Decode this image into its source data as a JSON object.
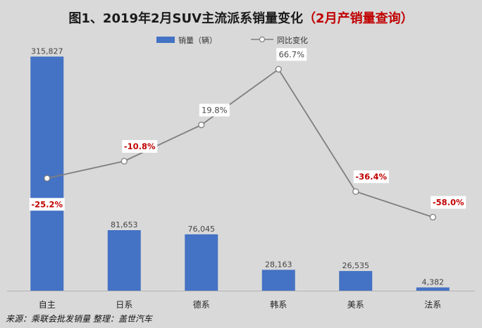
{
  "chart_data": {
    "type": "bar",
    "title_main": "图1、2019年2月SUV主流派系销量变化",
    "title_paren": "（2月产销量查询）",
    "categories": [
      "自主",
      "日系",
      "德系",
      "韩系",
      "美系",
      "法系"
    ],
    "series": [
      {
        "name": "销量（辆）",
        "type": "bar",
        "values": [
          315827,
          81653,
          76045,
          28163,
          26535,
          4382
        ],
        "labels": [
          "315,827",
          "81,653",
          "76,045",
          "28,163",
          "26,535",
          "4,382"
        ]
      },
      {
        "name": "同比变化",
        "type": "line",
        "values": [
          -25.2,
          -10.8,
          19.8,
          66.7,
          -36.4,
          -58.0
        ],
        "labels": [
          "-25.2%",
          "-10.8%",
          "19.8%",
          "66.7%",
          "-36.4%",
          "-58.0%"
        ]
      }
    ],
    "bar_ylim": [
      0,
      320000
    ],
    "line_ylim": [
      -120,
      80
    ],
    "legend_position": "top-center",
    "grid": false,
    "colors": {
      "bar": "#4472c4",
      "line": "#7f7f7f",
      "negative_label": "#c00000",
      "positive_label": "#4a4a4a",
      "title_paren": "#c00000"
    }
  },
  "footer": {
    "source": "来源：乘联会批发销量   整理：盖世汽车"
  }
}
